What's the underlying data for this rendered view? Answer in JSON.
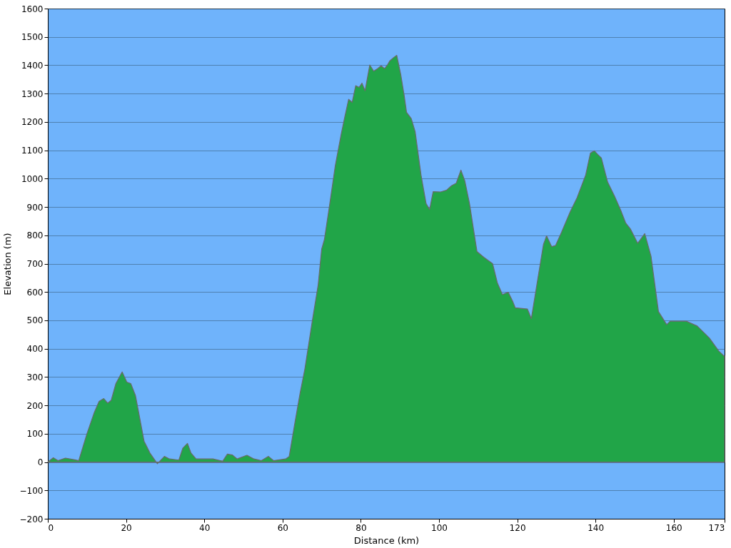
{
  "chart_data": {
    "type": "area",
    "xlabel": "Distance   (km)",
    "ylabel": "Elevation (m)",
    "xlim": [
      0,
      173
    ],
    "xticks": [
      0,
      20,
      40,
      60,
      80,
      100,
      120,
      140,
      160,
      173
    ],
    "ylim": [
      -200,
      1600
    ],
    "yticks": [
      -200,
      -100,
      0,
      100,
      200,
      300,
      400,
      500,
      600,
      700,
      800,
      900,
      1000,
      1100,
      1200,
      1300,
      1400,
      1500,
      1600
    ],
    "grid": "y",
    "x": [
      0,
      1.4,
      2.6,
      4.5,
      6.9,
      7.9,
      10.0,
      11.9,
      13.1,
      14.3,
      15.3,
      16.2,
      17.4,
      19.0,
      20.2,
      21.2,
      22.4,
      24.6,
      26.1,
      28.0,
      29.8,
      31.1,
      33.5,
      34.5,
      35.7,
      36.6,
      37.9,
      42.2,
      44.7,
      45.9,
      47.2,
      48.4,
      50.9,
      52.7,
      54.6,
      56.4,
      57.7,
      60.8,
      61.7,
      63.2,
      64.5,
      65.7,
      67.6,
      69.1,
      70.0,
      70.7,
      71.9,
      73.5,
      75.0,
      75.9,
      76.9,
      77.8,
      78.7,
      79.6,
      80.3,
      81.1,
      82.3,
      83.3,
      84.3,
      85.2,
      86.1,
      86.9,
      87.4,
      88.3,
      89.2,
      90.2,
      91.1,
      91.7,
      92.9,
      93.9,
      95.4,
      96.7,
      97.6,
      98.5,
      100.4,
      101.9,
      103.2,
      104.4,
      105.6,
      106.6,
      107.8,
      109.7,
      111.5,
      113.7,
      114.9,
      116.2,
      117.7,
      118.9,
      119.5,
      122.6,
      123.6,
      125.1,
      126.7,
      127.5,
      128.8,
      129.8,
      131.3,
      133.5,
      135.3,
      137.5,
      138.7,
      139.7,
      140.6,
      141.5,
      143.1,
      144.9,
      146.5,
      147.7,
      148.9,
      150.8,
      152.6,
      154.2,
      156.1,
      158.2,
      159.1,
      163.2,
      166.0,
      169.1,
      171.5,
      172.8,
      173
    ],
    "series": [
      {
        "color": "#21a548",
        "values": [
          0,
          15,
          5,
          14,
          8,
          5,
          100,
          176,
          214,
          224,
          208,
          218,
          277,
          318,
          282,
          277,
          235,
          74,
          32,
          -6,
          20,
          11,
          7,
          49,
          66,
          32,
          11,
          11,
          3,
          28,
          25,
          11,
          24,
          11,
          5,
          20,
          5,
          11,
          20,
          142,
          244,
          328,
          497,
          624,
          751,
          785,
          895,
          1047,
          1157,
          1217,
          1280,
          1269,
          1328,
          1322,
          1337,
          1310,
          1401,
          1379,
          1388,
          1398,
          1388,
          1403,
          1415,
          1426,
          1435,
          1369,
          1293,
          1234,
          1212,
          1166,
          1013,
          912,
          891,
          954,
          953,
          959,
          975,
          984,
          1030,
          992,
          912,
          743,
          722,
          700,
          633,
          591,
          599,
          565,
          544,
          540,
          506,
          633,
          768,
          798,
          760,
          764,
          810,
          882,
          933,
          1013,
          1090,
          1098,
          1085,
          1073,
          988,
          937,
          887,
          844,
          823,
          772,
          806,
          726,
          531,
          485,
          497,
          497,
          480,
          438,
          392,
          375,
          375
        ]
      }
    ]
  }
}
